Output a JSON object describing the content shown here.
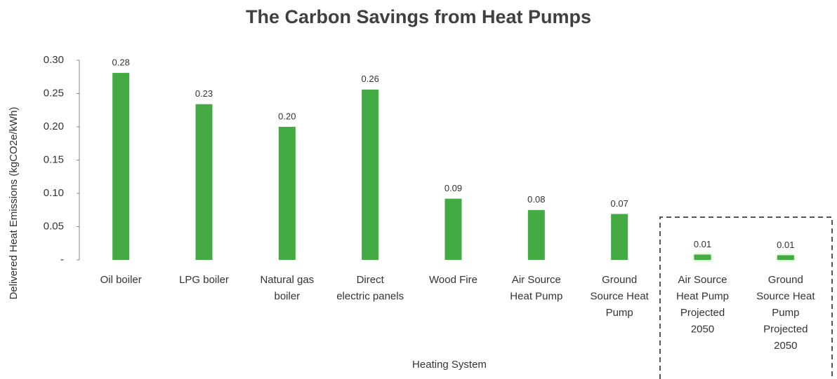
{
  "chart_data": {
    "type": "bar",
    "title": "The Carbon Savings from Heat Pumps",
    "x_label": "Heating System",
    "y_label": "Delivered Heat Emissions (kgCO2e/kWh)",
    "categories": [
      "Oil boiler",
      "LPG boiler",
      "Natural gas\nboiler",
      "Direct\nelectric panels",
      "Wood Fire",
      "Air Source\nHeat Pump",
      "Ground\nSource Heat\nPump",
      "Air Source\nHeat Pump\nProjected\n2050",
      "Ground\nSource Heat\nPump\nProjected\n2050"
    ],
    "values": [
      0.281,
      0.234,
      0.2,
      0.256,
      0.092,
      0.075,
      0.069,
      0.008,
      0.007
    ],
    "value_labels": [
      "0.28",
      "0.23",
      "0.20",
      "0.26",
      "0.09",
      "0.08",
      "0.07",
      "0.01",
      "0.01"
    ],
    "color": "#44ab44",
    "ylim": [
      0,
      0.3
    ],
    "yticks": [
      {
        "value": 0,
        "label": "-"
      },
      0.05,
      {
        "value": 0.1,
        "label": "0.10"
      },
      0.15,
      {
        "value": 0.2,
        "label": "0.20"
      },
      0.25,
      {
        "value": 0.3,
        "label": "0.30"
      }
    ],
    "grid": false
  }
}
